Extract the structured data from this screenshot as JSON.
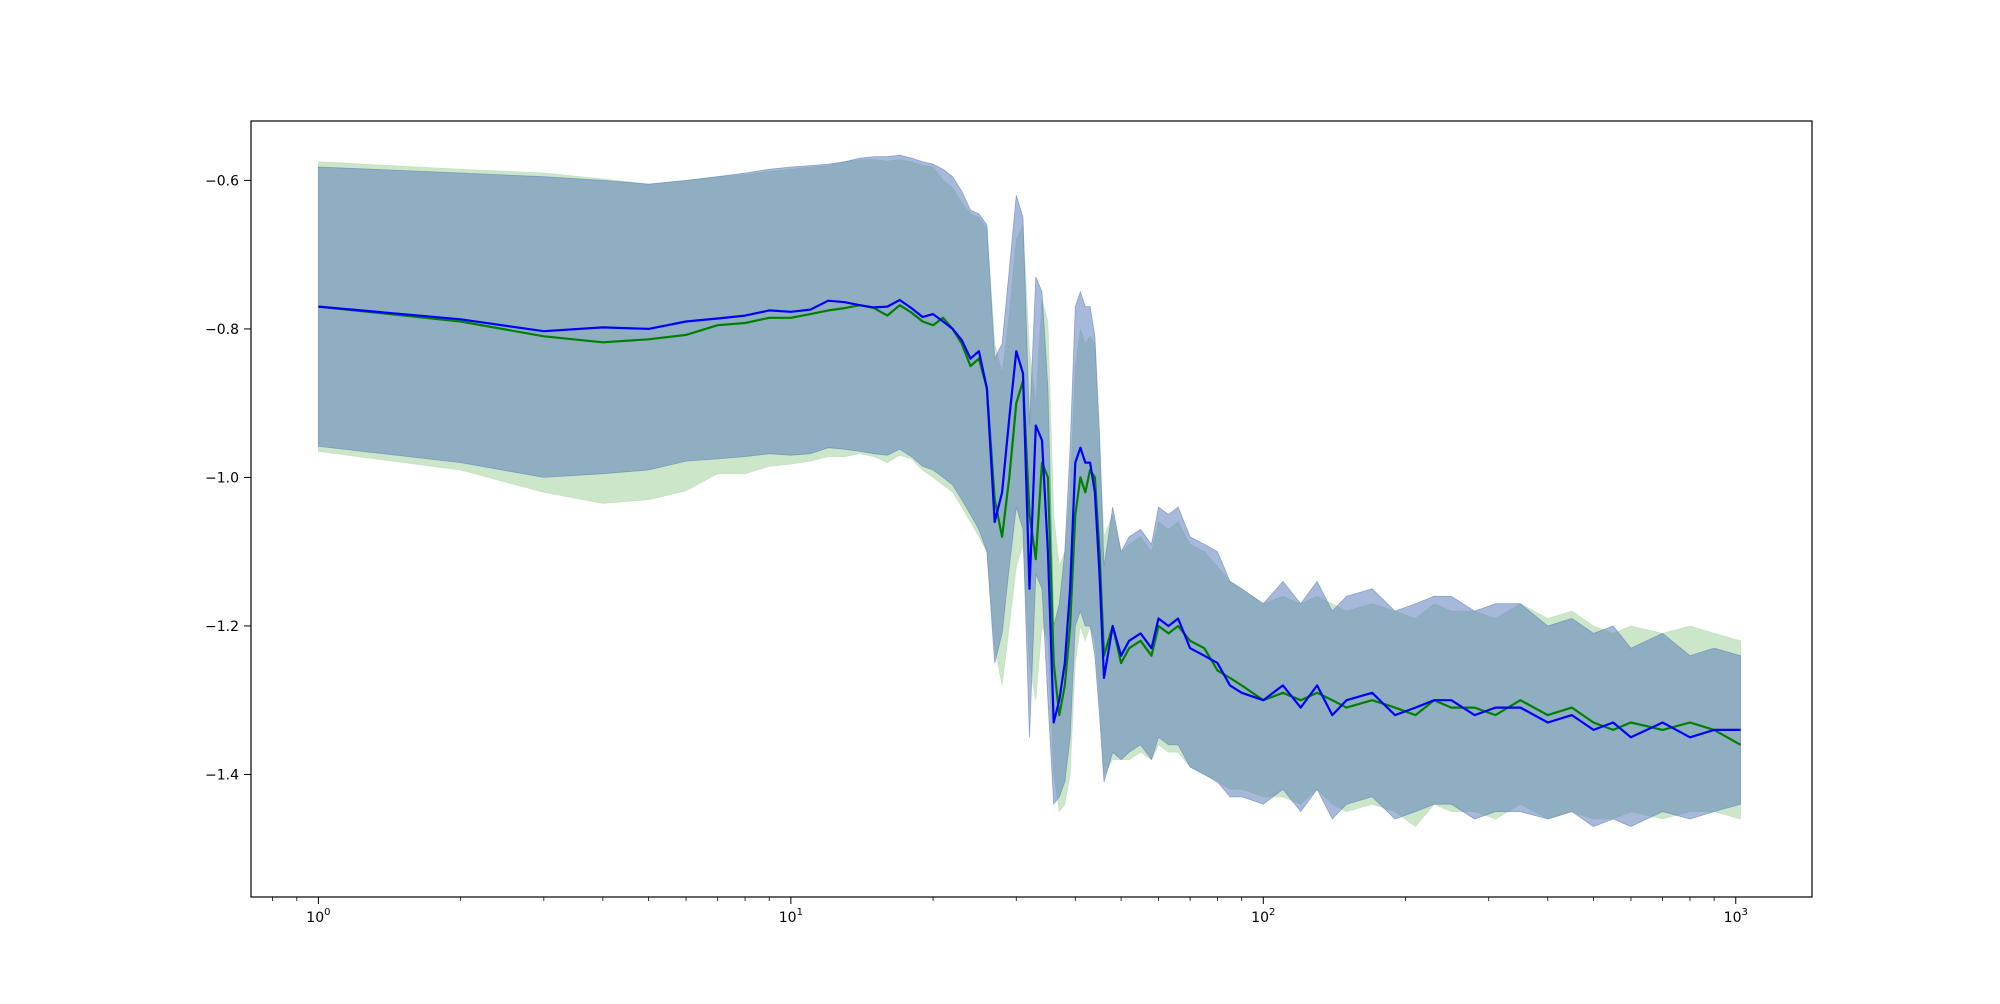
{
  "chart_data": {
    "type": "line",
    "title": "",
    "xlabel": "",
    "ylabel": "",
    "x_scale": "log",
    "xlim": [
      0.72,
      1450
    ],
    "ylim": [
      -1.565,
      -0.52
    ],
    "grid": false,
    "legend": "none",
    "x_ticks": [
      {
        "value": 1,
        "base": "10",
        "exp": "0"
      },
      {
        "value": 10,
        "base": "10",
        "exp": "1"
      },
      {
        "value": 100,
        "base": "10",
        "exp": "2"
      },
      {
        "value": 1000,
        "base": "10",
        "exp": "3"
      }
    ],
    "y_ticks": [
      {
        "value": -0.6,
        "label": "−0.6"
      },
      {
        "value": -0.8,
        "label": "−0.8"
      },
      {
        "value": -1.0,
        "label": "−1.0"
      },
      {
        "value": -1.2,
        "label": "−1.2"
      },
      {
        "value": -1.4,
        "label": "−1.4"
      }
    ],
    "series": [
      {
        "color": "#008000",
        "band_color": "#b5dbb0",
        "x": [
          1,
          2,
          3,
          4,
          5,
          6,
          7,
          8,
          9,
          10,
          11,
          12,
          13,
          14,
          15,
          16,
          17,
          18,
          19,
          20,
          21,
          22,
          23,
          24,
          25,
          26,
          27,
          28,
          29,
          30,
          31,
          32,
          33,
          34,
          35,
          36,
          37,
          38,
          39,
          40,
          41,
          42,
          43,
          44,
          45,
          46,
          48,
          50,
          52,
          55,
          58,
          60,
          63,
          66,
          70,
          75,
          80,
          85,
          90,
          100,
          110,
          120,
          130,
          140,
          150,
          170,
          190,
          210,
          230,
          250,
          280,
          310,
          350,
          400,
          450,
          500,
          550,
          600,
          700,
          800,
          900,
          1024
        ],
        "y": [
          -0.77,
          -0.79,
          -0.81,
          -0.818,
          -0.814,
          -0.808,
          -0.795,
          -0.792,
          -0.785,
          -0.785,
          -0.78,
          -0.775,
          -0.772,
          -0.768,
          -0.772,
          -0.782,
          -0.768,
          -0.778,
          -0.79,
          -0.795,
          -0.785,
          -0.8,
          -0.82,
          -0.85,
          -0.84,
          -0.88,
          -1.03,
          -1.08,
          -1.0,
          -0.9,
          -0.87,
          -1.05,
          -1.11,
          -0.98,
          -1.0,
          -1.25,
          -1.32,
          -1.28,
          -1.2,
          -1.05,
          -1.0,
          -1.02,
          -0.99,
          -1.0,
          -1.1,
          -1.24,
          -1.2,
          -1.25,
          -1.23,
          -1.22,
          -1.24,
          -1.2,
          -1.21,
          -1.2,
          -1.22,
          -1.23,
          -1.26,
          -1.27,
          -1.28,
          -1.3,
          -1.29,
          -1.3,
          -1.29,
          -1.3,
          -1.31,
          -1.3,
          -1.31,
          -1.32,
          -1.3,
          -1.31,
          -1.31,
          -1.32,
          -1.3,
          -1.32,
          -1.31,
          -1.33,
          -1.34,
          -1.33,
          -1.34,
          -1.33,
          -1.34,
          -1.36
        ],
        "lower": [
          -0.965,
          -0.99,
          -1.02,
          -1.035,
          -1.03,
          -1.018,
          -0.995,
          -0.995,
          -0.985,
          -0.982,
          -0.978,
          -0.972,
          -0.972,
          -0.968,
          -0.972,
          -0.98,
          -0.97,
          -0.975,
          -0.99,
          -1.0,
          -1.01,
          -1.02,
          -1.04,
          -1.06,
          -1.08,
          -1.1,
          -1.23,
          -1.28,
          -1.2,
          -1.12,
          -1.09,
          -1.25,
          -1.3,
          -1.2,
          -1.22,
          -1.4,
          -1.45,
          -1.44,
          -1.4,
          -1.25,
          -1.2,
          -1.22,
          -1.2,
          -1.22,
          -1.3,
          -1.4,
          -1.38,
          -1.38,
          -1.38,
          -1.37,
          -1.38,
          -1.36,
          -1.37,
          -1.37,
          -1.39,
          -1.4,
          -1.41,
          -1.42,
          -1.42,
          -1.43,
          -1.43,
          -1.44,
          -1.42,
          -1.44,
          -1.45,
          -1.44,
          -1.45,
          -1.47,
          -1.44,
          -1.45,
          -1.45,
          -1.46,
          -1.44,
          -1.46,
          -1.45,
          -1.46,
          -1.46,
          -1.45,
          -1.46,
          -1.45,
          -1.45,
          -1.46
        ],
        "upper": [
          -0.575,
          -0.585,
          -0.59,
          -0.598,
          -0.605,
          -0.6,
          -0.595,
          -0.592,
          -0.588,
          -0.585,
          -0.582,
          -0.58,
          -0.575,
          -0.572,
          -0.572,
          -0.574,
          -0.572,
          -0.575,
          -0.58,
          -0.582,
          -0.6,
          -0.61,
          -0.63,
          -0.645,
          -0.65,
          -0.665,
          -0.82,
          -0.86,
          -0.78,
          -0.68,
          -0.66,
          -0.83,
          -0.9,
          -0.76,
          -0.79,
          -1.05,
          -1.12,
          -1.1,
          -1.02,
          -0.85,
          -0.8,
          -0.82,
          -0.81,
          -0.82,
          -0.95,
          -1.08,
          -1.05,
          -1.1,
          -1.09,
          -1.08,
          -1.1,
          -1.06,
          -1.07,
          -1.06,
          -1.09,
          -1.1,
          -1.12,
          -1.14,
          -1.15,
          -1.17,
          -1.16,
          -1.17,
          -1.16,
          -1.17,
          -1.18,
          -1.17,
          -1.18,
          -1.19,
          -1.17,
          -1.18,
          -1.18,
          -1.19,
          -1.17,
          -1.19,
          -1.18,
          -1.2,
          -1.21,
          -1.2,
          -1.21,
          -1.2,
          -1.21,
          -1.22
        ]
      },
      {
        "color": "#0000ff",
        "band_color": "#5e7fbc",
        "x": [
          1,
          2,
          3,
          4,
          5,
          6,
          7,
          8,
          9,
          10,
          11,
          12,
          13,
          14,
          15,
          16,
          17,
          18,
          19,
          20,
          21,
          22,
          23,
          24,
          25,
          26,
          27,
          28,
          29,
          30,
          31,
          32,
          33,
          34,
          35,
          36,
          37,
          38,
          39,
          40,
          41,
          42,
          43,
          44,
          45,
          46,
          48,
          50,
          52,
          55,
          58,
          60,
          63,
          66,
          70,
          75,
          80,
          85,
          90,
          100,
          110,
          120,
          130,
          140,
          150,
          170,
          190,
          210,
          230,
          250,
          280,
          310,
          350,
          400,
          450,
          500,
          550,
          600,
          700,
          800,
          900,
          1024
        ],
        "y": [
          -0.77,
          -0.787,
          -0.803,
          -0.798,
          -0.8,
          -0.79,
          -0.786,
          -0.782,
          -0.775,
          -0.777,
          -0.774,
          -0.762,
          -0.764,
          -0.768,
          -0.771,
          -0.77,
          -0.761,
          -0.772,
          -0.784,
          -0.78,
          -0.79,
          -0.8,
          -0.815,
          -0.84,
          -0.83,
          -0.88,
          -1.06,
          -1.02,
          -0.92,
          -0.83,
          -0.86,
          -1.15,
          -0.93,
          -0.95,
          -1.1,
          -1.33,
          -1.3,
          -1.25,
          -1.15,
          -0.98,
          -0.96,
          -0.98,
          -0.98,
          -1.02,
          -1.13,
          -1.27,
          -1.2,
          -1.24,
          -1.22,
          -1.21,
          -1.23,
          -1.19,
          -1.2,
          -1.19,
          -1.23,
          -1.24,
          -1.25,
          -1.28,
          -1.29,
          -1.3,
          -1.28,
          -1.31,
          -1.28,
          -1.32,
          -1.3,
          -1.29,
          -1.32,
          -1.31,
          -1.3,
          -1.3,
          -1.32,
          -1.31,
          -1.31,
          -1.33,
          -1.32,
          -1.34,
          -1.33,
          -1.35,
          -1.33,
          -1.35,
          -1.34,
          -1.34
        ],
        "lower": [
          -0.958,
          -0.98,
          -1.0,
          -0.995,
          -0.99,
          -0.978,
          -0.975,
          -0.972,
          -0.968,
          -0.97,
          -0.968,
          -0.96,
          -0.962,
          -0.965,
          -0.968,
          -0.97,
          -0.962,
          -0.972,
          -0.985,
          -0.99,
          -1.0,
          -1.01,
          -1.03,
          -1.05,
          -1.07,
          -1.1,
          -1.25,
          -1.21,
          -1.12,
          -1.04,
          -1.07,
          -1.35,
          -1.13,
          -1.15,
          -1.3,
          -1.44,
          -1.43,
          -1.41,
          -1.35,
          -1.2,
          -1.18,
          -1.2,
          -1.2,
          -1.24,
          -1.32,
          -1.41,
          -1.37,
          -1.38,
          -1.37,
          -1.36,
          -1.38,
          -1.35,
          -1.36,
          -1.36,
          -1.39,
          -1.4,
          -1.41,
          -1.43,
          -1.43,
          -1.44,
          -1.42,
          -1.45,
          -1.42,
          -1.46,
          -1.44,
          -1.43,
          -1.46,
          -1.45,
          -1.44,
          -1.44,
          -1.46,
          -1.45,
          -1.45,
          -1.46,
          -1.45,
          -1.47,
          -1.46,
          -1.47,
          -1.45,
          -1.46,
          -1.45,
          -1.44
        ],
        "upper": [
          -0.582,
          -0.59,
          -0.595,
          -0.6,
          -0.605,
          -0.6,
          -0.595,
          -0.59,
          -0.585,
          -0.582,
          -0.58,
          -0.578,
          -0.575,
          -0.57,
          -0.568,
          -0.568,
          -0.566,
          -0.57,
          -0.575,
          -0.578,
          -0.585,
          -0.595,
          -0.615,
          -0.64,
          -0.645,
          -0.66,
          -0.84,
          -0.82,
          -0.72,
          -0.62,
          -0.65,
          -0.93,
          -0.73,
          -0.75,
          -0.88,
          -1.2,
          -1.17,
          -1.1,
          -0.96,
          -0.77,
          -0.75,
          -0.77,
          -0.77,
          -0.81,
          -0.94,
          -1.12,
          -1.04,
          -1.1,
          -1.08,
          -1.07,
          -1.09,
          -1.04,
          -1.05,
          -1.04,
          -1.08,
          -1.09,
          -1.1,
          -1.14,
          -1.15,
          -1.17,
          -1.14,
          -1.17,
          -1.14,
          -1.18,
          -1.16,
          -1.15,
          -1.18,
          -1.17,
          -1.16,
          -1.16,
          -1.18,
          -1.17,
          -1.17,
          -1.2,
          -1.19,
          -1.21,
          -1.2,
          -1.23,
          -1.21,
          -1.24,
          -1.23,
          -1.24
        ]
      }
    ]
  }
}
